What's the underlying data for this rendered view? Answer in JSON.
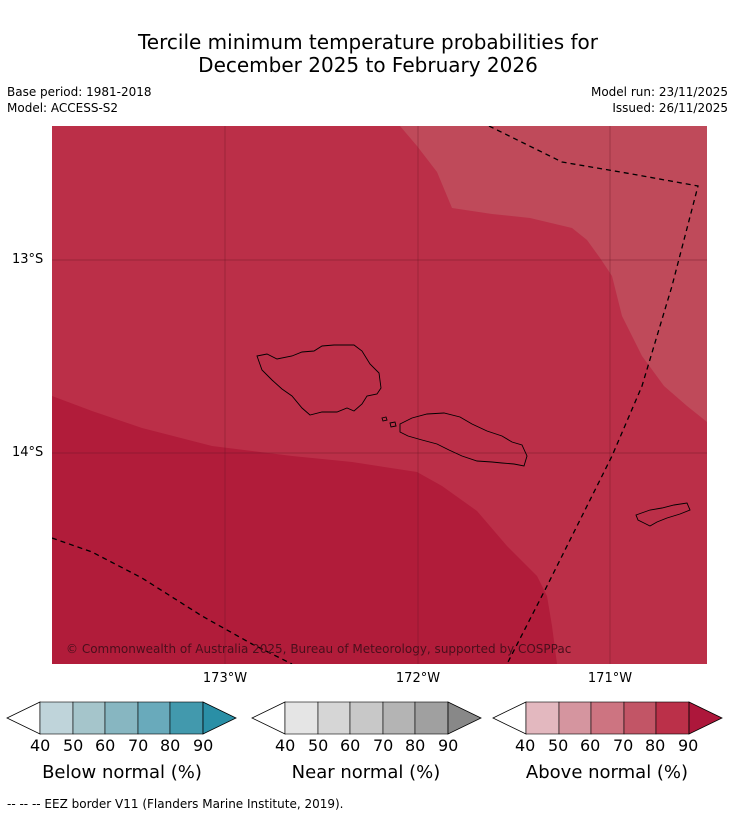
{
  "title": {
    "line1": "Tercile minimum temperature probabilities for",
    "line2": "December 2025 to February 2026"
  },
  "meta": {
    "base_period": "Base period: 1981-2018",
    "model": "Model: ACCESS-S2",
    "model_run": "Model run: 23/11/2025",
    "issued": "Issued: 26/11/2025"
  },
  "map": {
    "lat_labels": [
      "13°S",
      "14°S"
    ],
    "lon_labels": [
      "173°W",
      "172°W",
      "171°W"
    ],
    "copyright": "© Commonwealth of Australia 2025, Bureau of Meteorology, supported by COSPPac",
    "colors": {
      "dark": "#b11c3a",
      "mid": "#bb2f48",
      "light": "#bf4a5a"
    }
  },
  "colorbars": [
    {
      "title": "Below normal (%)",
      "ticks": [
        "40",
        "50",
        "60",
        "70",
        "80",
        "90"
      ],
      "colors": [
        "#bfd4da",
        "#a5c5cb",
        "#87b6c1",
        "#69aabb",
        "#4299ad",
        "#2a8fa6"
      ]
    },
    {
      "title": "Near normal (%)",
      "ticks": [
        "40",
        "50",
        "60",
        "70",
        "80",
        "90"
      ],
      "colors": [
        "#e5e5e5",
        "#d6d6d6",
        "#c8c8c8",
        "#b4b4b4",
        "#a0a0a0",
        "#888888"
      ]
    },
    {
      "title": "Above normal (%)",
      "ticks": [
        "40",
        "50",
        "60",
        "70",
        "80",
        "90"
      ],
      "colors": [
        "#e3b8bf",
        "#d5959f",
        "#cd7481",
        "#c25566",
        "#bb3049",
        "#ad173b"
      ]
    }
  ],
  "footer": "--  --  -- EEZ border V11 (Flanders Marine Institute, 2019)."
}
